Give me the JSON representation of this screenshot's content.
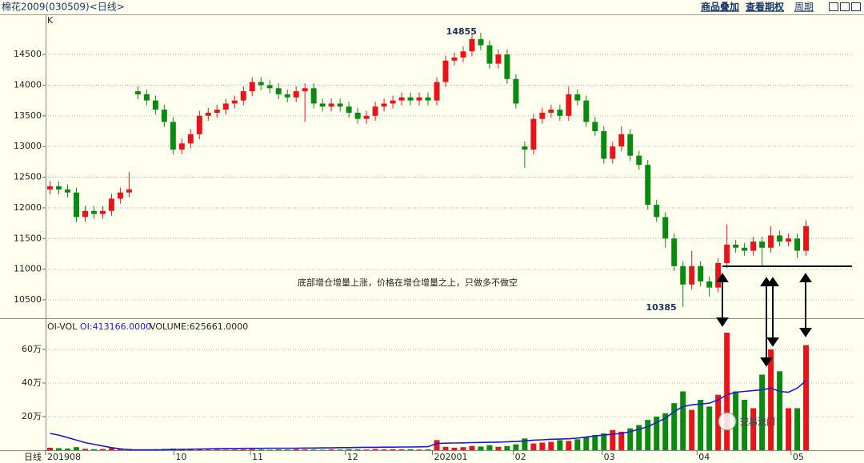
{
  "header": {
    "title": "棉花2009(030509)<日线>",
    "links": [
      "商品叠加",
      "查看期权",
      "周期"
    ]
  },
  "watermark": "交易法门",
  "chart_data": [
    {
      "type": "candlestick",
      "corner_label": "K",
      "period_label": "日线",
      "up_color": "#e8141a",
      "down_color": "#0b8a12",
      "note": "底部增仓增量上涨，价格在增仓增量之上，只做多不做空",
      "xlim": [
        -0.5,
        91.5
      ],
      "ylim": [
        10200,
        15140
      ],
      "yticks": [
        10500,
        11000,
        11500,
        12000,
        12500,
        13000,
        13500,
        14000,
        14500
      ],
      "grid": true,
      "xticks": [
        {
          "value": -0.5,
          "label": "201908"
        },
        {
          "value": 14.1,
          "label": "10"
        },
        {
          "value": 22.8,
          "label": "11"
        },
        {
          "value": 33.6,
          "label": "12"
        },
        {
          "value": 43.5,
          "label": "202001"
        },
        {
          "value": 52.7,
          "label": "02"
        },
        {
          "value": 62.8,
          "label": "03"
        },
        {
          "value": 73.6,
          "label": "04"
        },
        {
          "value": 84.3,
          "label": "05"
        }
      ],
      "labeled_high": 49,
      "labeled_low": 72,
      "x": [
        0,
        1,
        2,
        3,
        4,
        5,
        6,
        7,
        8,
        9,
        10,
        11,
        12,
        13,
        14,
        15,
        16,
        17,
        18,
        19,
        20,
        21,
        22,
        23,
        24,
        25,
        26,
        27,
        28,
        29,
        30,
        31,
        32,
        33,
        34,
        35,
        36,
        37,
        38,
        39,
        40,
        41,
        42,
        43,
        44,
        45,
        46,
        47,
        48,
        49,
        50,
        51,
        52,
        53,
        54,
        55,
        56,
        57,
        58,
        59,
        60,
        61,
        62,
        63,
        64,
        65,
        66,
        67,
        68,
        69,
        70,
        71,
        72,
        73,
        74,
        75,
        76,
        77,
        78,
        79,
        80,
        81,
        82,
        83,
        84,
        85,
        86
      ],
      "open": [
        12300,
        12350,
        12300,
        12250,
        11850,
        11950,
        11900,
        11950,
        12150,
        12250,
        13900,
        13850,
        13750,
        13600,
        13400,
        12950,
        13050,
        13200,
        13500,
        13550,
        13600,
        13700,
        13750,
        13900,
        14050,
        14000,
        13950,
        13850,
        13800,
        13900,
        13950,
        13700,
        13650,
        13700,
        13650,
        13550,
        13450,
        13500,
        13650,
        13700,
        13750,
        13800,
        13750,
        13800,
        13750,
        14050,
        14400,
        14450,
        14550,
        14750,
        14650,
        14350,
        14500,
        14100,
        13000,
        12950,
        13450,
        13550,
        13600,
        13500,
        13850,
        13750,
        13400,
        13250,
        12800,
        13000,
        13200,
        12850,
        12700,
        12050,
        11850,
        11500,
        11050,
        10750,
        11050,
        10800,
        10700,
        11100,
        11400,
        11350,
        11300,
        11450,
        11350,
        11550,
        11450,
        11500,
        11300
      ],
      "high": [
        12430,
        12430,
        12380,
        12330,
        12030,
        12030,
        12030,
        12230,
        12330,
        12580,
        13980,
        13930,
        13830,
        13680,
        13480,
        13130,
        13280,
        13580,
        13630,
        13680,
        13780,
        13830,
        13980,
        14130,
        14130,
        14080,
        14030,
        13930,
        13980,
        14030,
        14030,
        13780,
        13780,
        13780,
        13730,
        13630,
        13580,
        13730,
        13780,
        13830,
        13880,
        13880,
        13880,
        13880,
        14130,
        14480,
        14530,
        14630,
        14830,
        14855,
        14730,
        14580,
        14580,
        14180,
        13080,
        13530,
        13630,
        13680,
        13680,
        13980,
        13930,
        13830,
        13480,
        13330,
        13080,
        13330,
        13280,
        12930,
        12780,
        12130,
        11930,
        11580,
        11130,
        11300,
        11130,
        10880,
        11180,
        11730,
        11480,
        11430,
        11530,
        11530,
        11700,
        11630,
        11580,
        11580,
        11800
      ],
      "low": [
        12220,
        12220,
        12170,
        11770,
        11770,
        11820,
        11820,
        11870,
        12070,
        12170,
        13770,
        13670,
        13520,
        13320,
        12870,
        12870,
        12970,
        13120,
        13420,
        13470,
        13520,
        13620,
        13670,
        13820,
        13920,
        13870,
        13770,
        13720,
        13720,
        13400,
        13620,
        13570,
        13570,
        13570,
        13470,
        13370,
        13370,
        13420,
        13570,
        13620,
        13670,
        13670,
        13670,
        13670,
        13670,
        13970,
        14320,
        14370,
        14470,
        14570,
        14270,
        14270,
        14020,
        13620,
        12650,
        12870,
        13370,
        13470,
        13420,
        13420,
        13670,
        13320,
        13170,
        12720,
        12720,
        12920,
        12770,
        12620,
        11970,
        11770,
        11350,
        10970,
        10385,
        10670,
        10720,
        10550,
        10620,
        11020,
        11270,
        11220,
        11220,
        11050,
        11270,
        11370,
        11370,
        11180,
        11220
      ],
      "close": [
        12350,
        12300,
        12250,
        11850,
        11950,
        11900,
        11950,
        12150,
        12250,
        12300,
        13850,
        13750,
        13600,
        13400,
        12950,
        13050,
        13200,
        13500,
        13550,
        13600,
        13700,
        13750,
        13900,
        14050,
        14000,
        13950,
        13850,
        13800,
        13900,
        13950,
        13700,
        13650,
        13700,
        13650,
        13550,
        13450,
        13500,
        13650,
        13700,
        13750,
        13800,
        13750,
        13800,
        13750,
        14050,
        14400,
        14450,
        14550,
        14750,
        14650,
        14350,
        14500,
        14100,
        13700,
        12950,
        13450,
        13550,
        13600,
        13500,
        13850,
        13750,
        13400,
        13250,
        12800,
        13000,
        13200,
        12850,
        12700,
        12050,
        11850,
        11500,
        11050,
        10750,
        11050,
        10800,
        10700,
        11100,
        11400,
        11350,
        11300,
        11450,
        11350,
        11550,
        11450,
        11500,
        11300,
        11700
      ]
    },
    {
      "type": "volume",
      "title": "OI-VOL",
      "readout": [
        "OI:413166.0000",
        "VOLUME:625661.0000"
      ],
      "line_color": "#1a1ad6",
      "up_color": "#e8141a",
      "down_color": "#0b8a12",
      "xlim": [
        -0.5,
        91.5
      ],
      "ylim": [
        0,
        776000
      ],
      "grid": true,
      "yticks": [
        {
          "value": 200000,
          "label": "20万"
        },
        {
          "value": 400000,
          "label": "40万"
        },
        {
          "value": 600000,
          "label": "60万"
        }
      ],
      "volume": [
        15000,
        12000,
        10000,
        18000,
        8000,
        6000,
        7000,
        12000,
        9000,
        8000,
        5000,
        4000,
        6000,
        8000,
        10000,
        5000,
        4000,
        6000,
        3000,
        4000,
        3000,
        4000,
        5000,
        6000,
        4000,
        3000,
        5000,
        4000,
        6000,
        5000,
        4000,
        3000,
        5000,
        4000,
        6000,
        5000,
        4000,
        7000,
        5000,
        6000,
        5000,
        6000,
        4000,
        5000,
        60000,
        20000,
        15000,
        18000,
        25000,
        22000,
        30000,
        20000,
        25000,
        35000,
        70000,
        40000,
        45000,
        50000,
        60000,
        55000,
        65000,
        80000,
        90000,
        100000,
        120000,
        110000,
        130000,
        150000,
        180000,
        200000,
        220000,
        280000,
        350000,
        240000,
        300000,
        260000,
        330000,
        700000,
        350000,
        300000,
        250000,
        450000,
        600000,
        470000,
        250000,
        250000,
        625661
      ],
      "oi": [
        100000,
        90000,
        75000,
        60000,
        45000,
        35000,
        25000,
        15000,
        8000,
        3000,
        2000,
        2000,
        2000,
        3000,
        5000,
        5000,
        6000,
        7000,
        8000,
        9000,
        10000,
        10000,
        11000,
        11000,
        11000,
        12000,
        12000,
        12000,
        12000,
        13000,
        13000,
        14000,
        14000,
        15000,
        15000,
        16000,
        17000,
        17000,
        18000,
        18000,
        19000,
        19000,
        20000,
        21000,
        40000,
        42000,
        43000,
        44000,
        45000,
        46000,
        47000,
        48000,
        50000,
        52000,
        55000,
        60000,
        62000,
        65000,
        66000,
        68000,
        72000,
        78000,
        85000,
        90000,
        95000,
        100000,
        110000,
        125000,
        140000,
        165000,
        190000,
        230000,
        260000,
        270000,
        275000,
        280000,
        300000,
        330000,
        345000,
        350000,
        355000,
        360000,
        370000,
        350000,
        345000,
        370000,
        413166
      ]
    }
  ]
}
